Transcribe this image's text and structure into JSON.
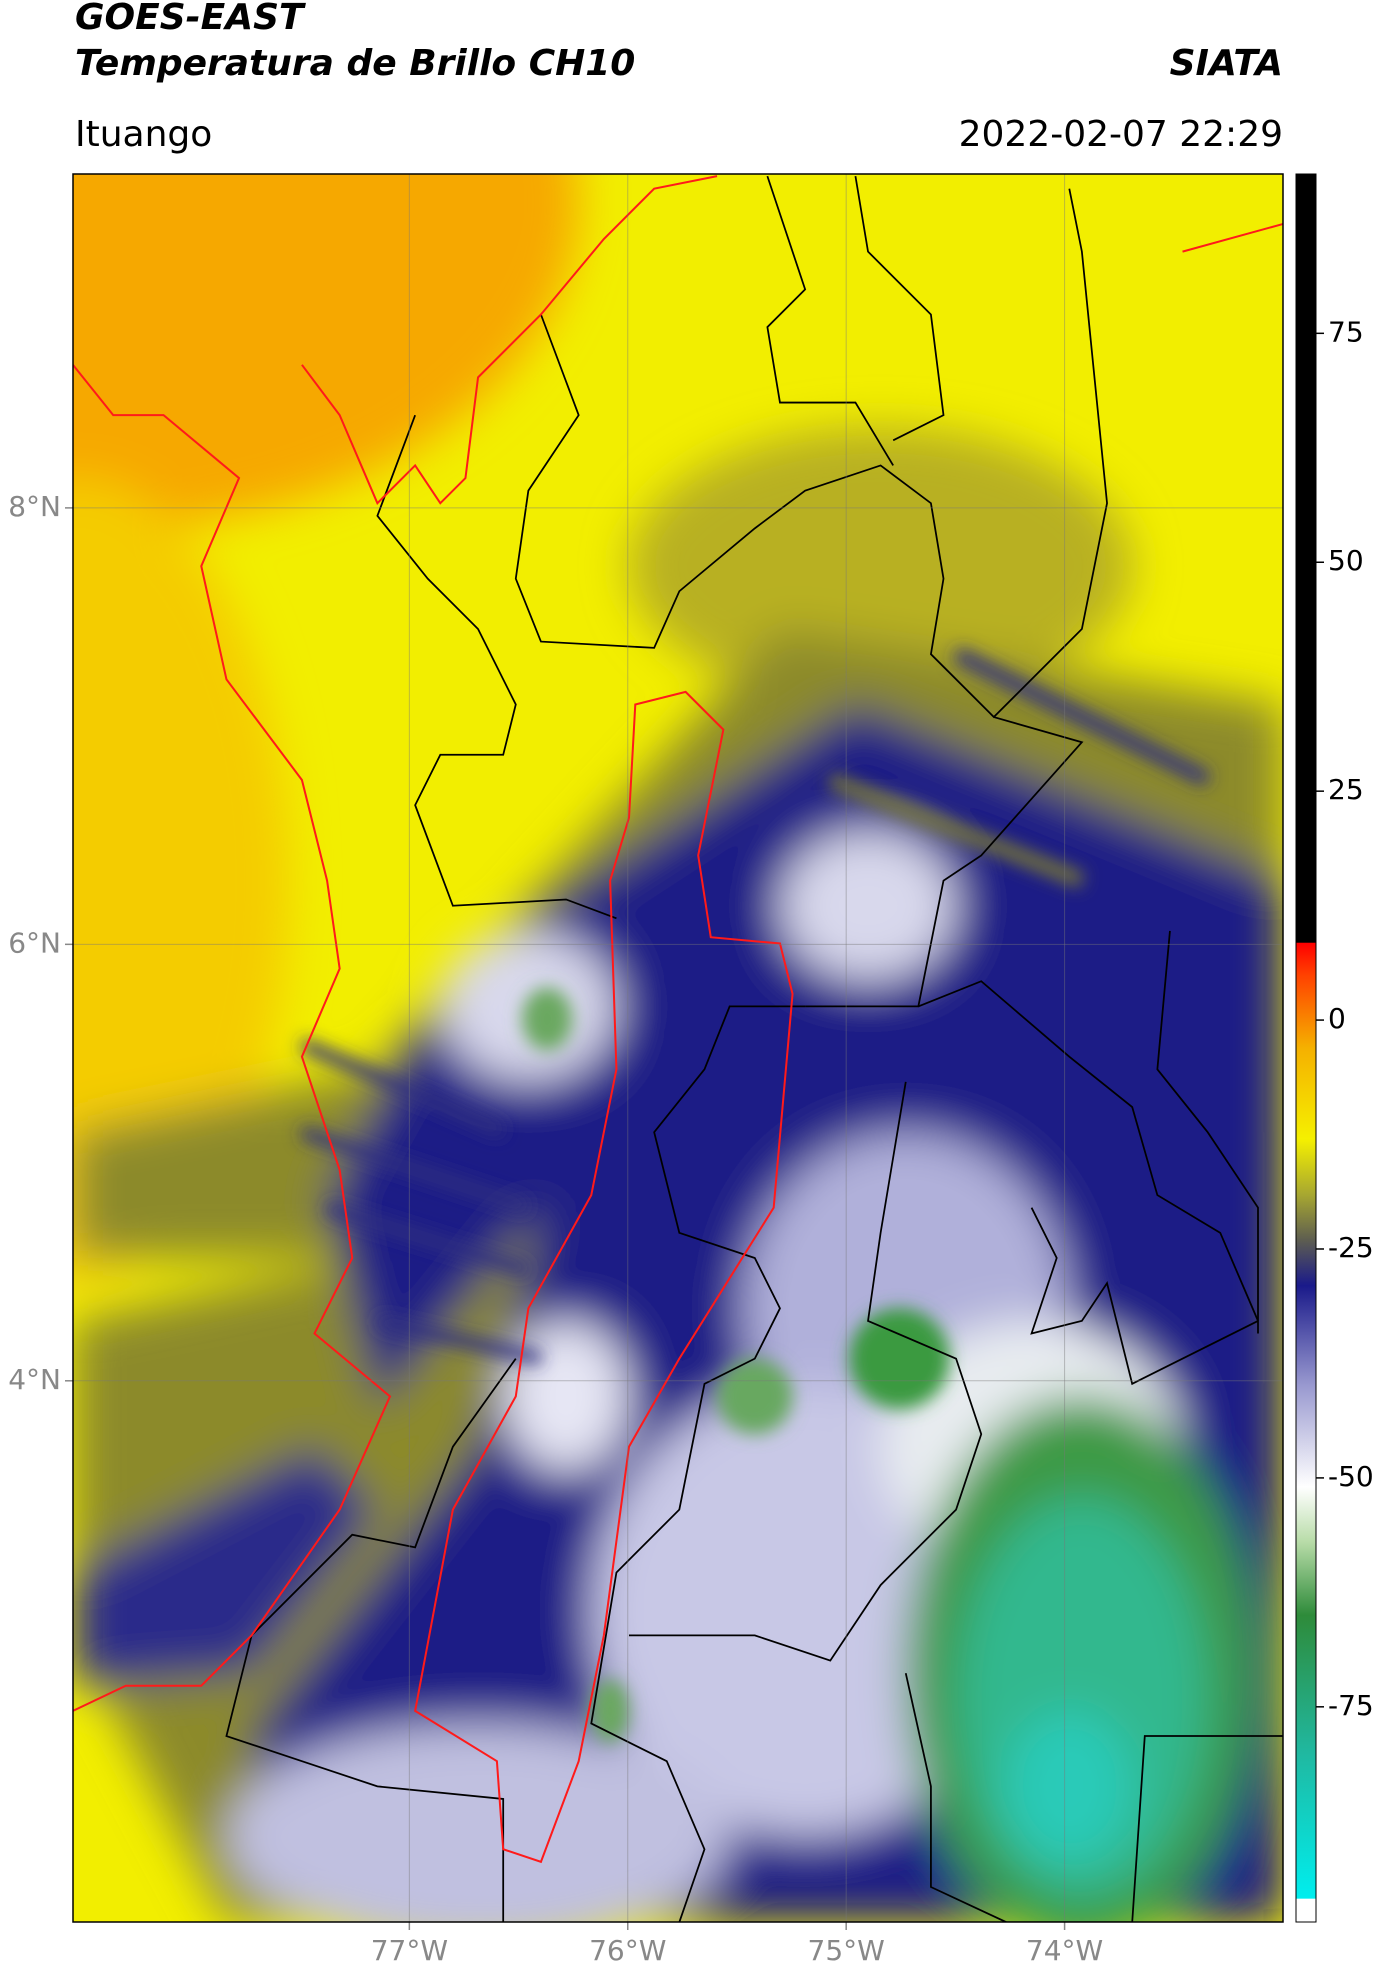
{
  "header": {
    "title": "GOES-EAST",
    "subtitle": "Temperatura de Brillo CH10",
    "source": "SIATA",
    "location": "Ituango",
    "datetime": "2022-02-07 22:29"
  },
  "map": {
    "xlim": [
      -78.54,
      -73.0
    ],
    "ylim": [
      1.52,
      9.53
    ],
    "xticks": [
      {
        "value": -77,
        "label": "77°W"
      },
      {
        "value": -76,
        "label": "76°W"
      },
      {
        "value": -75,
        "label": "75°W"
      },
      {
        "value": -74,
        "label": "74°W"
      }
    ],
    "yticks": [
      {
        "value": 8,
        "label": "8°N"
      },
      {
        "value": 6,
        "label": "6°N"
      },
      {
        "value": 4,
        "label": "4°N"
      }
    ],
    "grid": true
  },
  "colorbar": {
    "lim": [
      -98.5,
      92.4
    ],
    "ticks": [
      75,
      50,
      25,
      0,
      -25,
      -50,
      -75
    ],
    "colormap": [
      {
        "value": -98.5,
        "color": "#ffffff"
      },
      {
        "value": -96,
        "color": "#ffffff"
      },
      {
        "value": -95.9,
        "color": "#00eeee"
      },
      {
        "value": -80,
        "color": "#20b8a0"
      },
      {
        "value": -65,
        "color": "#2e8b3a"
      },
      {
        "value": -57,
        "color": "#b8dca8"
      },
      {
        "value": -51,
        "color": "#ffffff"
      },
      {
        "value": -40,
        "color": "#9a9ad0"
      },
      {
        "value": -29,
        "color": "#1a1a8a"
      },
      {
        "value": -24,
        "color": "#5e5e50"
      },
      {
        "value": -19,
        "color": "#a8a830"
      },
      {
        "value": -13,
        "color": "#f5f000"
      },
      {
        "value": -3,
        "color": "#f5b000"
      },
      {
        "value": 5,
        "color": "#ff4000"
      },
      {
        "value": 8.4,
        "color": "#ff0000"
      },
      {
        "value": 8.5,
        "color": "#000000"
      },
      {
        "value": 92.4,
        "color": "#000000"
      }
    ]
  }
}
